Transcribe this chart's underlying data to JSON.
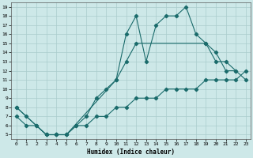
{
  "xlabel": "Humidex (Indice chaleur)",
  "background_color": "#cde8e8",
  "grid_color": "#aacccc",
  "line_color": "#1a6b6b",
  "ylim_min": 5,
  "ylim_max": 19,
  "xlim_min": 0,
  "xlim_max": 23,
  "yticks": [
    5,
    6,
    7,
    8,
    9,
    10,
    11,
    12,
    13,
    14,
    15,
    16,
    17,
    18,
    19
  ],
  "xticks": [
    0,
    1,
    2,
    3,
    4,
    5,
    6,
    7,
    8,
    9,
    10,
    11,
    12,
    13,
    14,
    15,
    16,
    17,
    18,
    19,
    20,
    21,
    22,
    23
  ],
  "line1_x": [
    0,
    1,
    2,
    3,
    4,
    5,
    10,
    11,
    12,
    13,
    14,
    15,
    16,
    17,
    18,
    19,
    20,
    21,
    22
  ],
  "line1_y": [
    8,
    7,
    6,
    5,
    5,
    5,
    11,
    16,
    18,
    13,
    17,
    18,
    18,
    19,
    16,
    15,
    14,
    12,
    12
  ],
  "line2_x": [
    0,
    3,
    4,
    5,
    6,
    7,
    8,
    9,
    10,
    11,
    12,
    19,
    20,
    21,
    22,
    23
  ],
  "line2_y": [
    8,
    5,
    5,
    5,
    6,
    7,
    9,
    10,
    11,
    13,
    15,
    15,
    13,
    13,
    12,
    11
  ],
  "line3_x": [
    0,
    1,
    2,
    3,
    4,
    5,
    6,
    7,
    8,
    9,
    10,
    11,
    12,
    13,
    14,
    15,
    16,
    17,
    18,
    19,
    20,
    21,
    22,
    23
  ],
  "line3_y": [
    7,
    6,
    6,
    5,
    5,
    5,
    6,
    6,
    7,
    7,
    8,
    8,
    9,
    9,
    9,
    10,
    10,
    10,
    10,
    11,
    11,
    11,
    11,
    12
  ]
}
